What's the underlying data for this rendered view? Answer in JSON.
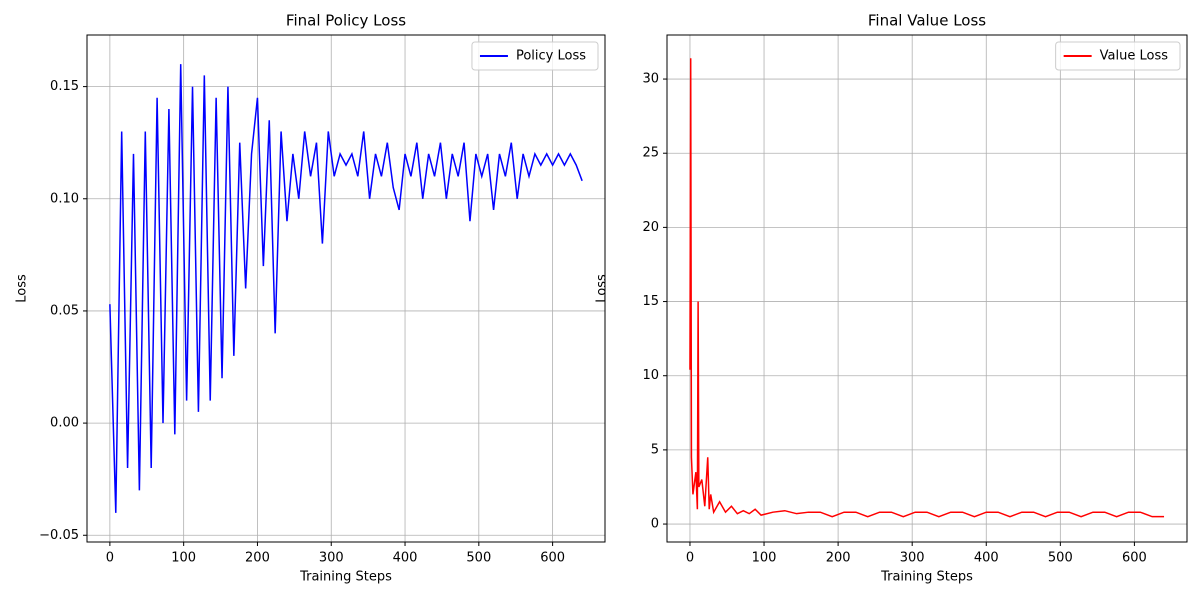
{
  "chart_data": [
    {
      "type": "line",
      "title": "Final Policy Loss",
      "xlabel": "Training Steps",
      "ylabel": "Loss",
      "x": [
        0,
        8,
        16,
        24,
        32,
        40,
        48,
        56,
        64,
        72,
        80,
        88,
        96,
        104,
        112,
        120,
        128,
        136,
        144,
        152,
        160,
        168,
        176,
        184,
        192,
        200,
        208,
        216,
        224,
        232,
        240,
        248,
        256,
        264,
        272,
        280,
        288,
        296,
        304,
        312,
        320,
        328,
        336,
        344,
        352,
        360,
        368,
        376,
        384,
        392,
        400,
        408,
        416,
        424,
        432,
        440,
        448,
        456,
        464,
        472,
        480,
        488,
        496,
        504,
        512,
        520,
        528,
        536,
        544,
        552,
        560,
        568,
        576,
        584,
        592,
        600,
        608,
        616,
        624,
        632,
        640
      ],
      "series": [
        {
          "name": "Policy Loss",
          "color": "#0000ff",
          "values": [
            0.053,
            -0.04,
            0.13,
            -0.02,
            0.12,
            -0.03,
            0.13,
            -0.02,
            0.145,
            0.0,
            0.14,
            -0.005,
            0.16,
            0.01,
            0.15,
            0.005,
            0.155,
            0.01,
            0.145,
            0.02,
            0.15,
            0.03,
            0.125,
            0.06,
            0.12,
            0.145,
            0.07,
            0.135,
            0.04,
            0.13,
            0.09,
            0.12,
            0.1,
            0.13,
            0.11,
            0.125,
            0.08,
            0.13,
            0.11,
            0.12,
            0.115,
            0.12,
            0.11,
            0.13,
            0.1,
            0.12,
            0.11,
            0.125,
            0.105,
            0.095,
            0.12,
            0.11,
            0.125,
            0.1,
            0.12,
            0.11,
            0.125,
            0.1,
            0.12,
            0.11,
            0.125,
            0.09,
            0.12,
            0.11,
            0.12,
            0.095,
            0.12,
            0.11,
            0.125,
            0.1,
            0.12,
            0.11,
            0.12,
            0.115,
            0.12,
            0.115,
            0.12,
            0.115,
            0.12,
            0.115,
            0.108
          ]
        }
      ],
      "xlim": [
        -31,
        671
      ],
      "ylim": [
        -0.053,
        0.173
      ],
      "xticks": [
        0,
        100,
        200,
        300,
        400,
        500,
        600
      ],
      "yticks": [
        {
          "value": -0.05,
          "label": "−0.05"
        },
        {
          "value": 0,
          "label": "0.00"
        },
        {
          "value": 0.05,
          "label": "0.05"
        },
        {
          "value": 0.1,
          "label": "0.10"
        },
        {
          "value": 0.15,
          "label": "0.15"
        }
      ],
      "grid": true,
      "legend": "upper right"
    },
    {
      "type": "line",
      "title": "Final Value Loss",
      "xlabel": "Training Steps",
      "ylabel": "Loss",
      "x": [
        0,
        1,
        2,
        4,
        8,
        10,
        11,
        12,
        16,
        20,
        24,
        26,
        28,
        32,
        40,
        48,
        56,
        64,
        72,
        80,
        88,
        96,
        112,
        128,
        144,
        160,
        176,
        192,
        208,
        224,
        240,
        256,
        272,
        288,
        304,
        320,
        336,
        352,
        368,
        384,
        400,
        416,
        432,
        448,
        464,
        480,
        496,
        512,
        528,
        544,
        560,
        576,
        592,
        608,
        624,
        640
      ],
      "series": [
        {
          "name": "Value Loss",
          "color": "#ff0000",
          "values": [
            10.4,
            31.4,
            4.5,
            2.0,
            3.5,
            1.0,
            15.0,
            2.5,
            3.0,
            1.2,
            4.5,
            1.0,
            2.0,
            0.8,
            1.5,
            0.8,
            1.2,
            0.7,
            0.9,
            0.7,
            1.0,
            0.6,
            0.8,
            0.9,
            0.7,
            0.8,
            0.8,
            0.5,
            0.8,
            0.8,
            0.5,
            0.8,
            0.8,
            0.5,
            0.8,
            0.8,
            0.5,
            0.8,
            0.8,
            0.5,
            0.8,
            0.8,
            0.5,
            0.8,
            0.8,
            0.5,
            0.8,
            0.8,
            0.5,
            0.8,
            0.8,
            0.5,
            0.8,
            0.8,
            0.5,
            0.5
          ]
        }
      ],
      "xlim": [
        -31,
        671
      ],
      "ylim": [
        -1.21,
        32.97
      ],
      "xticks": [
        0,
        100,
        200,
        300,
        400,
        500,
        600
      ],
      "yticks": [
        0,
        5,
        10,
        15,
        20,
        25,
        30
      ],
      "grid": true,
      "legend": "upper right"
    }
  ]
}
